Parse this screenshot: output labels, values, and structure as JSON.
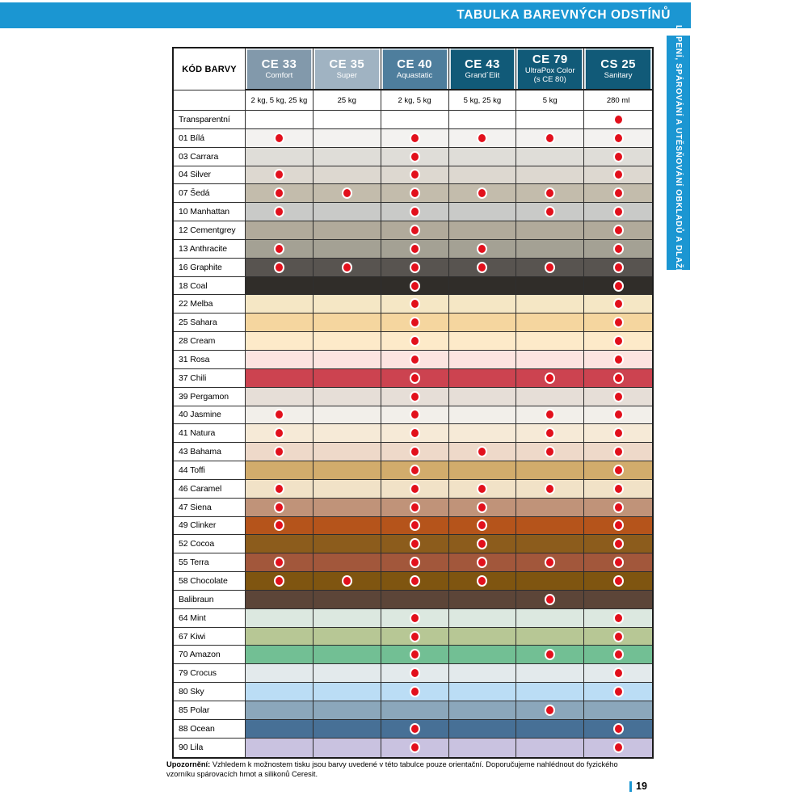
{
  "header": {
    "title": "TABULKA BAREVNÝCH ODSTÍNŮ"
  },
  "side_tab": {
    "label": "LEPENÍ, SPÁROVÁNÍ A UTĚSŇOVÁNÍ OBKLADŮ A DLAŽBY"
  },
  "colors": {
    "accent_blue": "#1b96d2",
    "dot_red": "#e2101c",
    "grid_line": "#2e2e2e",
    "teal_header": "#115a78"
  },
  "table": {
    "corner_label": "KÓD BARVY",
    "columns": [
      {
        "code": "CE 33",
        "name": "Comfort",
        "note": "",
        "bg": "#8299ab"
      },
      {
        "code": "CE 35",
        "name": "Super",
        "note": "",
        "bg": "#a0b3c2"
      },
      {
        "code": "CE 40",
        "name": "Aquastatic",
        "note": "",
        "bg": "#4e7e9d"
      },
      {
        "code": "CE 43",
        "name": "Grand´Elit",
        "note": "",
        "bg": "#115a78"
      },
      {
        "code": "CE 79",
        "name": "UltraPox Color",
        "note": "(s CE 80)",
        "bg": "#115a78"
      },
      {
        "code": "CS 25",
        "name": "Sanitary",
        "note": "",
        "bg": "#115a78"
      }
    ],
    "packages": [
      "2 kg, 5 kg, 25 kg",
      "25 kg",
      "2 kg, 5 kg",
      "5 kg, 25 kg",
      "5 kg",
      "280 ml"
    ],
    "rows": [
      {
        "label": "Transparentní",
        "color": "#ffffff",
        "dots": [
          0,
          0,
          0,
          0,
          0,
          1
        ]
      },
      {
        "label": "01 Bílá",
        "color": "#f3f2f0",
        "dots": [
          1,
          0,
          1,
          1,
          1,
          1
        ]
      },
      {
        "label": "03 Carrara",
        "color": "#dfddd8",
        "dots": [
          0,
          0,
          1,
          0,
          0,
          1
        ]
      },
      {
        "label": "04 Silver",
        "color": "#ddd8d0",
        "dots": [
          1,
          0,
          1,
          0,
          0,
          1
        ]
      },
      {
        "label": "07 Šedá",
        "color": "#c3bcac",
        "dots": [
          1,
          1,
          1,
          1,
          1,
          1
        ]
      },
      {
        "label": "10 Manhattan",
        "color": "#c9cac8",
        "dots": [
          1,
          0,
          1,
          0,
          1,
          1
        ]
      },
      {
        "label": "12 Cementgrey",
        "color": "#b1aa9b",
        "dots": [
          0,
          0,
          1,
          0,
          0,
          1
        ]
      },
      {
        "label": "13 Anthracite",
        "color": "#a4a194",
        "dots": [
          1,
          0,
          1,
          1,
          0,
          1
        ]
      },
      {
        "label": "16 Graphite",
        "color": "#585450",
        "dots": [
          1,
          1,
          1,
          1,
          1,
          1
        ]
      },
      {
        "label": "18 Coal",
        "color": "#302d29",
        "dots": [
          0,
          0,
          1,
          0,
          0,
          1
        ]
      },
      {
        "label": "22 Melba",
        "color": "#f5e7c5",
        "dots": [
          0,
          0,
          1,
          0,
          0,
          1
        ]
      },
      {
        "label": "25 Sahara",
        "color": "#f5d69f",
        "dots": [
          0,
          0,
          1,
          0,
          0,
          1
        ]
      },
      {
        "label": "28 Cream",
        "color": "#fdeac9",
        "dots": [
          0,
          0,
          1,
          0,
          0,
          1
        ]
      },
      {
        "label": "31 Rosa",
        "color": "#fce4e0",
        "dots": [
          0,
          0,
          1,
          0,
          0,
          1
        ]
      },
      {
        "label": "37 Chili",
        "color": "#cc4350",
        "dots": [
          0,
          0,
          1,
          0,
          1,
          1
        ]
      },
      {
        "label": "39 Pergamon",
        "color": "#e6ded7",
        "dots": [
          0,
          0,
          1,
          0,
          0,
          1
        ]
      },
      {
        "label": "40 Jasmine",
        "color": "#f2efea",
        "dots": [
          1,
          0,
          1,
          0,
          1,
          1
        ]
      },
      {
        "label": "41 Natura",
        "color": "#f6ead7",
        "dots": [
          1,
          0,
          1,
          0,
          1,
          1
        ]
      },
      {
        "label": "43 Bahama",
        "color": "#eed9c9",
        "dots": [
          1,
          0,
          1,
          1,
          1,
          1
        ]
      },
      {
        "label": "44 Toffi",
        "color": "#d2ac6c",
        "dots": [
          0,
          0,
          1,
          0,
          0,
          1
        ]
      },
      {
        "label": "46 Caramel",
        "color": "#f1e2c7",
        "dots": [
          1,
          0,
          1,
          1,
          1,
          1
        ]
      },
      {
        "label": "47 Siena",
        "color": "#c09379",
        "dots": [
          1,
          0,
          1,
          1,
          0,
          1
        ]
      },
      {
        "label": "49 Clinker",
        "color": "#b5541b",
        "dots": [
          1,
          0,
          1,
          1,
          0,
          1
        ]
      },
      {
        "label": "52 Cocoa",
        "color": "#8c5c1c",
        "dots": [
          0,
          0,
          1,
          1,
          0,
          1
        ]
      },
      {
        "label": "55 Terra",
        "color": "#a2573b",
        "dots": [
          1,
          0,
          1,
          1,
          1,
          1
        ]
      },
      {
        "label": "58 Chocolate",
        "color": "#7f5510",
        "dots": [
          1,
          1,
          1,
          1,
          0,
          1
        ]
      },
      {
        "label": "Balibraun",
        "color": "#5c4538",
        "dots": [
          0,
          0,
          0,
          0,
          1,
          0
        ]
      },
      {
        "label": "64 Mint",
        "color": "#dce8e0",
        "dots": [
          0,
          0,
          1,
          0,
          0,
          1
        ]
      },
      {
        "label": "67 Kiwi",
        "color": "#b7c795",
        "dots": [
          0,
          0,
          1,
          0,
          0,
          1
        ]
      },
      {
        "label": "70 Amazon",
        "color": "#72bf94",
        "dots": [
          0,
          0,
          1,
          0,
          1,
          1
        ]
      },
      {
        "label": "79 Crocus",
        "color": "#e3eaec",
        "dots": [
          0,
          0,
          1,
          0,
          0,
          1
        ]
      },
      {
        "label": "80 Sky",
        "color": "#bbddf5",
        "dots": [
          0,
          0,
          1,
          0,
          0,
          1
        ]
      },
      {
        "label": "85 Polar",
        "color": "#8ba7bb",
        "dots": [
          0,
          0,
          0,
          0,
          1,
          0
        ]
      },
      {
        "label": "88 Ocean",
        "color": "#477096",
        "dots": [
          0,
          0,
          1,
          0,
          0,
          1
        ]
      },
      {
        "label": "90 Lila",
        "color": "#c9c2e0",
        "dots": [
          0,
          0,
          1,
          0,
          0,
          1
        ]
      }
    ]
  },
  "footer": {
    "note_bold": "Upozornění:",
    "note_text": " Vzhledem k možnostem tisku jsou barvy uvedené v této tabulce pouze orientační. Doporučujeme nahlédnout do fyzického vzorníku spárovacích hmot a silikonů Ceresit.",
    "page_number": "19"
  }
}
